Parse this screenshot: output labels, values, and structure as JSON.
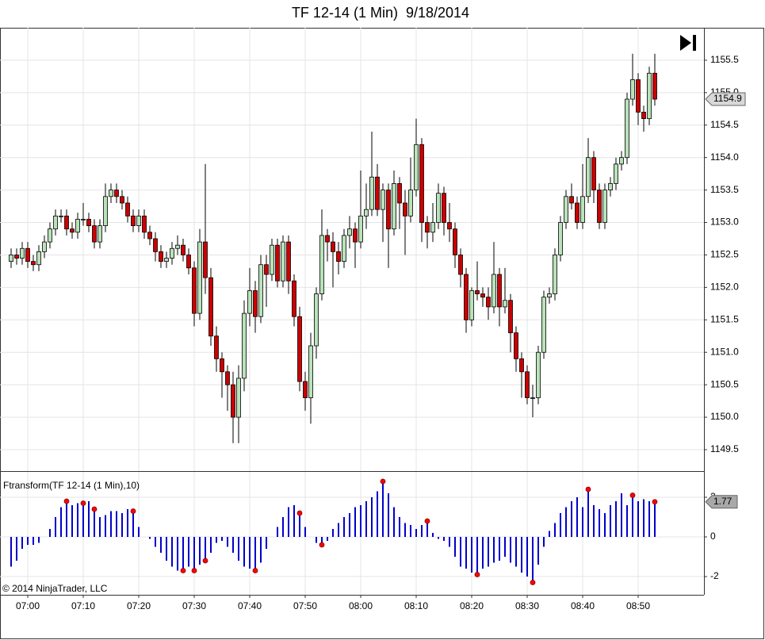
{
  "chart_data": [
    {
      "type": "candlestick",
      "title": "TF 12-14 (1 Min)  9/18/2014",
      "categories": [
        null,
        null,
        null,
        "07:00",
        null,
        null,
        null,
        null,
        null,
        null,
        null,
        null,
        null,
        "07:10",
        null,
        null,
        null,
        null,
        null,
        null,
        null,
        null,
        null,
        "07:20",
        null,
        null,
        null,
        null,
        null,
        null,
        null,
        null,
        null,
        "07:30",
        null,
        null,
        null,
        null,
        null,
        null,
        null,
        null,
        null,
        "07:40",
        null,
        null,
        null,
        null,
        null,
        null,
        null,
        null,
        null,
        "07:50",
        null,
        null,
        null,
        null,
        null,
        null,
        null,
        null,
        null,
        "08:00",
        null,
        null,
        null,
        null,
        null,
        null,
        null,
        null,
        null,
        "08:10",
        null,
        null,
        null,
        null,
        null,
        null,
        null,
        null,
        null,
        "08:20",
        null,
        null,
        null,
        null,
        null,
        null,
        null,
        null,
        null,
        "08:30",
        null,
        null,
        null,
        null,
        null,
        null,
        null,
        null,
        null,
        "08:40",
        null,
        null,
        null,
        null,
        null,
        null,
        null,
        null,
        null,
        "08:50",
        null,
        null,
        null
      ],
      "open": [
        1152.4,
        1152.5,
        1152.45,
        1152.6,
        1152.4,
        1152.35,
        1152.55,
        1152.7,
        1152.9,
        1153.1,
        1153.1,
        1152.9,
        1152.85,
        1153.05,
        1153.05,
        1152.95,
        1152.7,
        1152.95,
        1153.4,
        1153.5,
        1153.4,
        1153.3,
        1153.1,
        1152.95,
        1153.1,
        1152.85,
        1152.75,
        1152.55,
        1152.4,
        1152.45,
        1152.6,
        1152.65,
        1152.5,
        1152.3,
        1151.6,
        1152.7,
        1152.15,
        1151.25,
        1150.9,
        1150.7,
        1150.5,
        1150.0,
        1150.6,
        1151.6,
        1151.95,
        1151.55,
        1152.35,
        1152.2,
        1152.65,
        1152.1,
        1152.7,
        1152.1,
        1151.55,
        1150.55,
        1150.3,
        1151.1,
        1151.9,
        1152.8,
        1152.7,
        1152.55,
        1152.4,
        1152.8,
        1152.9,
        1152.7,
        1153.1,
        1153.2,
        1153.7,
        1153.2,
        1153.5,
        1152.9,
        1153.6,
        1153.3,
        1153.1,
        1153.5,
        1154.2,
        1153.0,
        1152.85,
        1153.0,
        1153.45,
        1153.0,
        1152.9,
        1152.5,
        1152.2,
        1151.5,
        1151.95,
        1151.9,
        1151.85,
        1151.7,
        1152.2,
        1151.7,
        1151.8,
        1151.3,
        1150.9,
        1150.7,
        1150.3,
        1150.3,
        1151.0,
        1151.85,
        1151.9,
        1152.5,
        1153.0,
        1153.4,
        1153.3,
        1153.0,
        1153.4,
        1154.0,
        1153.5,
        1153.0,
        1153.5,
        1153.6,
        1153.9,
        1154.0,
        1154.9,
        1155.2,
        1154.7,
        1154.6,
        1155.3
      ],
      "high": [
        1152.6,
        1152.6,
        1152.7,
        1152.7,
        1152.5,
        1152.65,
        1152.8,
        1153.0,
        1153.2,
        1153.2,
        1153.2,
        1153.0,
        1153.15,
        1153.3,
        1153.15,
        1153.05,
        1153.05,
        1153.6,
        1153.6,
        1153.6,
        1153.5,
        1153.4,
        1153.2,
        1153.2,
        1153.2,
        1152.95,
        1152.85,
        1152.65,
        1152.55,
        1152.7,
        1152.8,
        1152.75,
        1152.6,
        1152.4,
        1152.9,
        1153.9,
        1152.3,
        1151.4,
        1151.0,
        1150.8,
        1150.7,
        1150.8,
        1151.8,
        1152.3,
        1152.1,
        1152.5,
        1152.5,
        1152.75,
        1152.75,
        1152.8,
        1152.8,
        1152.2,
        1151.7,
        1150.7,
        1151.3,
        1152.0,
        1153.2,
        1152.9,
        1152.85,
        1152.7,
        1152.9,
        1153.1,
        1153.0,
        1153.8,
        1153.6,
        1154.4,
        1153.9,
        1153.6,
        1153.6,
        1153.8,
        1153.7,
        1153.5,
        1154.0,
        1154.6,
        1154.3,
        1153.1,
        1153.3,
        1153.6,
        1153.55,
        1153.3,
        1153.0,
        1152.6,
        1152.3,
        1152.0,
        1152.4,
        1152.0,
        1152.0,
        1152.7,
        1152.3,
        1152.3,
        1151.9,
        1151.4,
        1151.0,
        1150.8,
        1150.5,
        1151.1,
        1151.95,
        1152.0,
        1152.6,
        1153.1,
        1153.5,
        1153.6,
        1153.4,
        1153.9,
        1154.3,
        1154.1,
        1153.6,
        1153.6,
        1153.7,
        1154.0,
        1154.1,
        1155.0,
        1155.6,
        1155.3,
        1154.8,
        1155.4,
        1155.6
      ],
      "low": [
        1152.3,
        1152.35,
        1152.35,
        1152.3,
        1152.25,
        1152.25,
        1152.45,
        1152.6,
        1152.8,
        1153.0,
        1152.8,
        1152.75,
        1152.75,
        1152.95,
        1152.85,
        1152.6,
        1152.6,
        1152.85,
        1153.3,
        1153.3,
        1153.2,
        1153.0,
        1152.85,
        1152.85,
        1152.75,
        1152.65,
        1152.4,
        1152.3,
        1152.3,
        1152.35,
        1152.5,
        1152.4,
        1152.2,
        1151.4,
        1151.5,
        1151.9,
        1151.1,
        1150.7,
        1150.3,
        1150.1,
        1149.6,
        1149.6,
        1150.4,
        1151.4,
        1151.3,
        1151.45,
        1151.7,
        1152.1,
        1152.0,
        1152.0,
        1151.9,
        1151.4,
        1150.4,
        1150.1,
        1149.9,
        1150.9,
        1151.8,
        1152.4,
        1152.0,
        1152.2,
        1152.3,
        1152.6,
        1152.3,
        1152.6,
        1152.9,
        1153.1,
        1153.1,
        1152.7,
        1152.3,
        1152.8,
        1152.9,
        1152.5,
        1153.0,
        1153.4,
        1152.7,
        1152.6,
        1152.7,
        1152.9,
        1152.8,
        1152.7,
        1152.3,
        1152.0,
        1151.3,
        1151.4,
        1151.8,
        1151.7,
        1151.5,
        1151.6,
        1151.4,
        1151.6,
        1151.0,
        1150.7,
        1150.3,
        1150.2,
        1150.0,
        1150.2,
        1150.9,
        1151.75,
        1151.8,
        1152.4,
        1152.9,
        1153.2,
        1152.9,
        1152.9,
        1153.3,
        1153.3,
        1152.9,
        1152.9,
        1153.4,
        1153.5,
        1153.8,
        1153.9,
        1154.8,
        1154.5,
        1154.4,
        1154.5,
        1154.8
      ],
      "close": [
        1152.5,
        1152.45,
        1152.6,
        1152.4,
        1152.35,
        1152.55,
        1152.7,
        1152.9,
        1153.1,
        1153.1,
        1152.9,
        1152.85,
        1153.05,
        1153.05,
        1152.95,
        1152.7,
        1152.95,
        1153.4,
        1153.5,
        1153.4,
        1153.3,
        1153.1,
        1152.95,
        1153.1,
        1152.85,
        1152.75,
        1152.55,
        1152.4,
        1152.45,
        1152.6,
        1152.65,
        1152.5,
        1152.3,
        1151.6,
        1152.7,
        1152.15,
        1151.25,
        1150.9,
        1150.7,
        1150.5,
        1150.0,
        1150.6,
        1151.6,
        1151.95,
        1151.55,
        1152.35,
        1152.2,
        1152.65,
        1152.1,
        1152.7,
        1152.1,
        1151.55,
        1150.55,
        1150.3,
        1151.1,
        1151.9,
        1152.8,
        1152.7,
        1152.55,
        1152.4,
        1152.8,
        1152.9,
        1152.7,
        1153.1,
        1153.2,
        1153.7,
        1153.2,
        1153.5,
        1152.9,
        1153.6,
        1153.3,
        1153.1,
        1153.5,
        1154.2,
        1153.0,
        1152.85,
        1153.0,
        1153.45,
        1153.0,
        1152.9,
        1152.5,
        1152.2,
        1151.5,
        1151.95,
        1151.9,
        1151.85,
        1151.7,
        1152.2,
        1151.7,
        1151.8,
        1151.3,
        1150.9,
        1150.7,
        1150.3,
        1150.3,
        1151.0,
        1151.85,
        1151.9,
        1152.5,
        1153.0,
        1153.4,
        1153.3,
        1153.0,
        1153.4,
        1154.0,
        1153.5,
        1153.0,
        1153.5,
        1153.6,
        1153.9,
        1154.0,
        1154.9,
        1155.2,
        1154.7,
        1154.6,
        1155.3,
        1154.9
      ],
      "up_color": "#b9e2b9",
      "down_color": "#cc0000",
      "ylim": [
        1149.17,
        1156.0
      ],
      "yticks": [
        1149.5,
        {
          "value": 1150,
          "label": "1150.0"
        },
        1150.5,
        {
          "value": 1151,
          "label": "1151.0"
        },
        1151.5,
        {
          "value": 1152,
          "label": "1152.0"
        },
        1152.5,
        {
          "value": 1153,
          "label": "1153.0"
        },
        1153.5,
        {
          "value": 1154,
          "label": "1154.0"
        },
        1154.5,
        {
          "value": 1155,
          "label": "1155.0"
        },
        1155.5
      ],
      "grid": true
    },
    {
      "type": "bar",
      "title": "Ftransform(TF 12-14 (1 Min),10)",
      "values": [
        -1.5,
        -1.2,
        -0.6,
        -0.4,
        -0.4,
        -0.3,
        0.0,
        0.4,
        1.0,
        1.5,
        1.8,
        1.6,
        1.7,
        1.7,
        1.8,
        1.4,
        1.0,
        1.1,
        1.3,
        1.3,
        1.2,
        1.4,
        1.3,
        0.5,
        0.0,
        -0.1,
        -0.5,
        -0.8,
        -1.2,
        -1.5,
        -1.7,
        -1.7,
        -1.5,
        -1.7,
        -1.4,
        -1.2,
        -0.8,
        -0.3,
        -0.2,
        -0.5,
        -0.8,
        -1.2,
        -1.5,
        -1.6,
        -1.7,
        -1.3,
        -0.6,
        0.0,
        0.5,
        1.0,
        1.5,
        1.6,
        1.2,
        0.5,
        0.0,
        -0.3,
        -0.4,
        -0.2,
        0.4,
        0.7,
        1.0,
        1.2,
        1.5,
        1.6,
        1.8,
        2.0,
        2.3,
        2.8,
        2.2,
        1.5,
        1.0,
        0.7,
        0.6,
        0.4,
        0.6,
        0.8,
        0.2,
        -0.1,
        -0.2,
        -0.5,
        -1.0,
        -1.5,
        -1.6,
        -1.8,
        -1.9,
        -1.6,
        -1.5,
        -1.3,
        -1.2,
        -1.0,
        -1.3,
        -1.5,
        -1.8,
        -2.0,
        -2.3,
        -1.4,
        -0.5,
        0.3,
        0.7,
        1.2,
        1.5,
        1.8,
        2.0,
        1.5,
        2.4,
        1.6,
        1.4,
        1.2,
        1.6,
        1.8,
        2.2,
        1.6,
        2.1,
        1.8,
        1.9,
        1.8,
        1.77
      ],
      "markers": [
        null,
        null,
        null,
        null,
        null,
        null,
        null,
        null,
        null,
        null,
        1.8,
        null,
        null,
        1.7,
        null,
        1.4,
        null,
        null,
        null,
        null,
        null,
        null,
        1.3,
        null,
        null,
        null,
        null,
        null,
        null,
        null,
        null,
        -1.7,
        null,
        -1.7,
        null,
        -1.2,
        null,
        null,
        null,
        null,
        null,
        null,
        null,
        null,
        -1.7,
        null,
        null,
        null,
        null,
        null,
        null,
        null,
        1.2,
        null,
        null,
        null,
        -0.4,
        null,
        null,
        null,
        null,
        null,
        null,
        null,
        null,
        null,
        null,
        2.8,
        null,
        null,
        null,
        null,
        null,
        null,
        null,
        0.8,
        null,
        null,
        null,
        null,
        null,
        null,
        null,
        null,
        -1.9,
        null,
        null,
        null,
        null,
        null,
        null,
        null,
        null,
        null,
        -2.3,
        null,
        null,
        null,
        null,
        null,
        null,
        null,
        null,
        null,
        2.4,
        null,
        null,
        null,
        null,
        null,
        null,
        null,
        2.1,
        null,
        null,
        null,
        1.77
      ],
      "color": "#0000cc",
      "marker_color": "#ff0000",
      "ylim": [
        -2.92,
        3.32
      ],
      "yticks": [
        -2,
        0,
        2
      ]
    }
  ],
  "copyright": "© 2014 NinjaTrader, LLC"
}
